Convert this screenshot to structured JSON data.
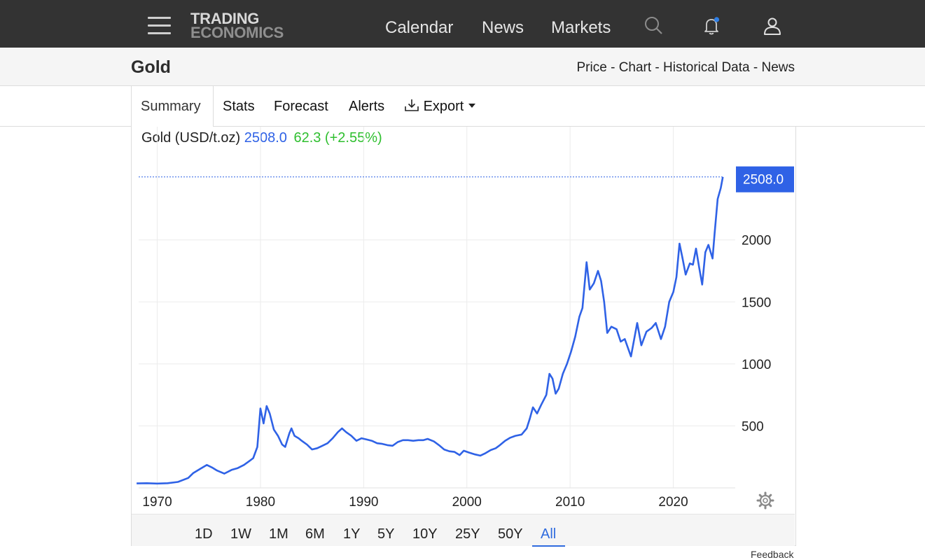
{
  "header": {
    "logo_line1": "TRADING",
    "logo_line2": "ECONOMICS",
    "nav": [
      "Calendar",
      "News",
      "Markets"
    ],
    "icons": [
      "menu-icon",
      "search-icon",
      "bell-icon",
      "user-icon"
    ]
  },
  "subheader": {
    "title": "Gold",
    "links": [
      "Price",
      "Chart",
      "Historical Data",
      "News"
    ],
    "separator": " - "
  },
  "tabs": {
    "items": [
      "Summary",
      "Stats",
      "Forecast",
      "Alerts",
      "Export"
    ],
    "active": "Summary"
  },
  "quote": {
    "name": "Gold (USD/t.oz)",
    "price": "2508.0",
    "change": "62.3 (+2.55%)"
  },
  "chart_data": {
    "type": "line",
    "series": [
      {
        "color": "#2f62e6",
        "points": [
          [
            1968.0,
            36
          ],
          [
            1969.0,
            38
          ],
          [
            1970.0,
            35
          ],
          [
            1971.0,
            38
          ],
          [
            1972.0,
            48
          ],
          [
            1973.0,
            80
          ],
          [
            1973.5,
            120
          ],
          [
            1974.2,
            155
          ],
          [
            1974.8,
            185
          ],
          [
            1975.3,
            165
          ],
          [
            1975.8,
            140
          ],
          [
            1976.5,
            115
          ],
          [
            1977.2,
            145
          ],
          [
            1977.8,
            160
          ],
          [
            1978.4,
            185
          ],
          [
            1978.9,
            215
          ],
          [
            1979.3,
            240
          ],
          [
            1979.7,
            330
          ],
          [
            1980.0,
            640
          ],
          [
            1980.3,
            520
          ],
          [
            1980.6,
            660
          ],
          [
            1980.9,
            600
          ],
          [
            1981.3,
            470
          ],
          [
            1981.7,
            420
          ],
          [
            1982.1,
            350
          ],
          [
            1982.4,
            330
          ],
          [
            1982.8,
            440
          ],
          [
            1983.0,
            480
          ],
          [
            1983.3,
            420
          ],
          [
            1983.7,
            400
          ],
          [
            1984.0,
            380
          ],
          [
            1984.5,
            350
          ],
          [
            1985.0,
            310
          ],
          [
            1985.5,
            320
          ],
          [
            1986.0,
            340
          ],
          [
            1986.5,
            360
          ],
          [
            1987.0,
            400
          ],
          [
            1987.5,
            450
          ],
          [
            1987.9,
            480
          ],
          [
            1988.3,
            450
          ],
          [
            1988.8,
            420
          ],
          [
            1989.3,
            380
          ],
          [
            1989.8,
            400
          ],
          [
            1990.3,
            390
          ],
          [
            1990.8,
            380
          ],
          [
            1991.3,
            360
          ],
          [
            1991.8,
            355
          ],
          [
            1992.3,
            345
          ],
          [
            1992.8,
            340
          ],
          [
            1993.3,
            370
          ],
          [
            1993.8,
            385
          ],
          [
            1994.3,
            385
          ],
          [
            1994.8,
            380
          ],
          [
            1995.3,
            385
          ],
          [
            1995.8,
            385
          ],
          [
            1996.2,
            395
          ],
          [
            1996.8,
            375
          ],
          [
            1997.3,
            345
          ],
          [
            1997.8,
            310
          ],
          [
            1998.3,
            295
          ],
          [
            1998.8,
            290
          ],
          [
            1999.3,
            265
          ],
          [
            1999.7,
            300
          ],
          [
            2000.2,
            285
          ],
          [
            2000.8,
            270
          ],
          [
            2001.3,
            260
          ],
          [
            2001.8,
            280
          ],
          [
            2002.3,
            305
          ],
          [
            2002.8,
            320
          ],
          [
            2003.2,
            345
          ],
          [
            2003.7,
            380
          ],
          [
            2004.2,
            405
          ],
          [
            2004.7,
            420
          ],
          [
            2005.3,
            430
          ],
          [
            2005.8,
            480
          ],
          [
            2006.1,
            560
          ],
          [
            2006.4,
            650
          ],
          [
            2006.8,
            600
          ],
          [
            2007.2,
            670
          ],
          [
            2007.7,
            750
          ],
          [
            2008.0,
            920
          ],
          [
            2008.3,
            880
          ],
          [
            2008.6,
            760
          ],
          [
            2008.9,
            800
          ],
          [
            2009.3,
            920
          ],
          [
            2009.7,
            1000
          ],
          [
            2010.1,
            1100
          ],
          [
            2010.5,
            1220
          ],
          [
            2010.9,
            1380
          ],
          [
            2011.2,
            1450
          ],
          [
            2011.6,
            1820
          ],
          [
            2011.9,
            1600
          ],
          [
            2012.3,
            1650
          ],
          [
            2012.7,
            1750
          ],
          [
            2013.0,
            1670
          ],
          [
            2013.3,
            1500
          ],
          [
            2013.6,
            1250
          ],
          [
            2014.0,
            1300
          ],
          [
            2014.5,
            1280
          ],
          [
            2014.9,
            1180
          ],
          [
            2015.3,
            1200
          ],
          [
            2015.9,
            1060
          ],
          [
            2016.5,
            1330
          ],
          [
            2016.9,
            1150
          ],
          [
            2017.4,
            1260
          ],
          [
            2017.9,
            1290
          ],
          [
            2018.3,
            1330
          ],
          [
            2018.8,
            1200
          ],
          [
            2019.2,
            1300
          ],
          [
            2019.6,
            1500
          ],
          [
            2020.0,
            1580
          ],
          [
            2020.3,
            1700
          ],
          [
            2020.6,
            1970
          ],
          [
            2020.9,
            1850
          ],
          [
            2021.2,
            1720
          ],
          [
            2021.6,
            1810
          ],
          [
            2021.9,
            1800
          ],
          [
            2022.2,
            1930
          ],
          [
            2022.5,
            1780
          ],
          [
            2022.8,
            1640
          ],
          [
            2023.1,
            1900
          ],
          [
            2023.4,
            1960
          ],
          [
            2023.8,
            1850
          ],
          [
            2024.0,
            2050
          ],
          [
            2024.3,
            2330
          ],
          [
            2024.6,
            2420
          ],
          [
            2024.8,
            2508
          ]
        ]
      }
    ],
    "x_ticks": [
      1970,
      1980,
      1990,
      2000,
      2010,
      2020
    ],
    "y_ticks": [
      500,
      1000,
      1500,
      2000
    ],
    "xlim": [
      1968.2,
      2026.0
    ],
    "ylim": [
      0,
      2800
    ],
    "grid": true,
    "last_value_label": "2508.0",
    "title": "",
    "xlabel": "",
    "ylabel": ""
  },
  "ranges": {
    "items": [
      "1D",
      "1W",
      "1M",
      "6M",
      "1Y",
      "5Y",
      "10Y",
      "25Y",
      "50Y",
      "All"
    ],
    "active": "All"
  },
  "feedback_label": "Feedback",
  "colors": {
    "topbar": "#333333",
    "accent_blue": "#2f62e6",
    "gain_green": "#2fbf2f"
  }
}
